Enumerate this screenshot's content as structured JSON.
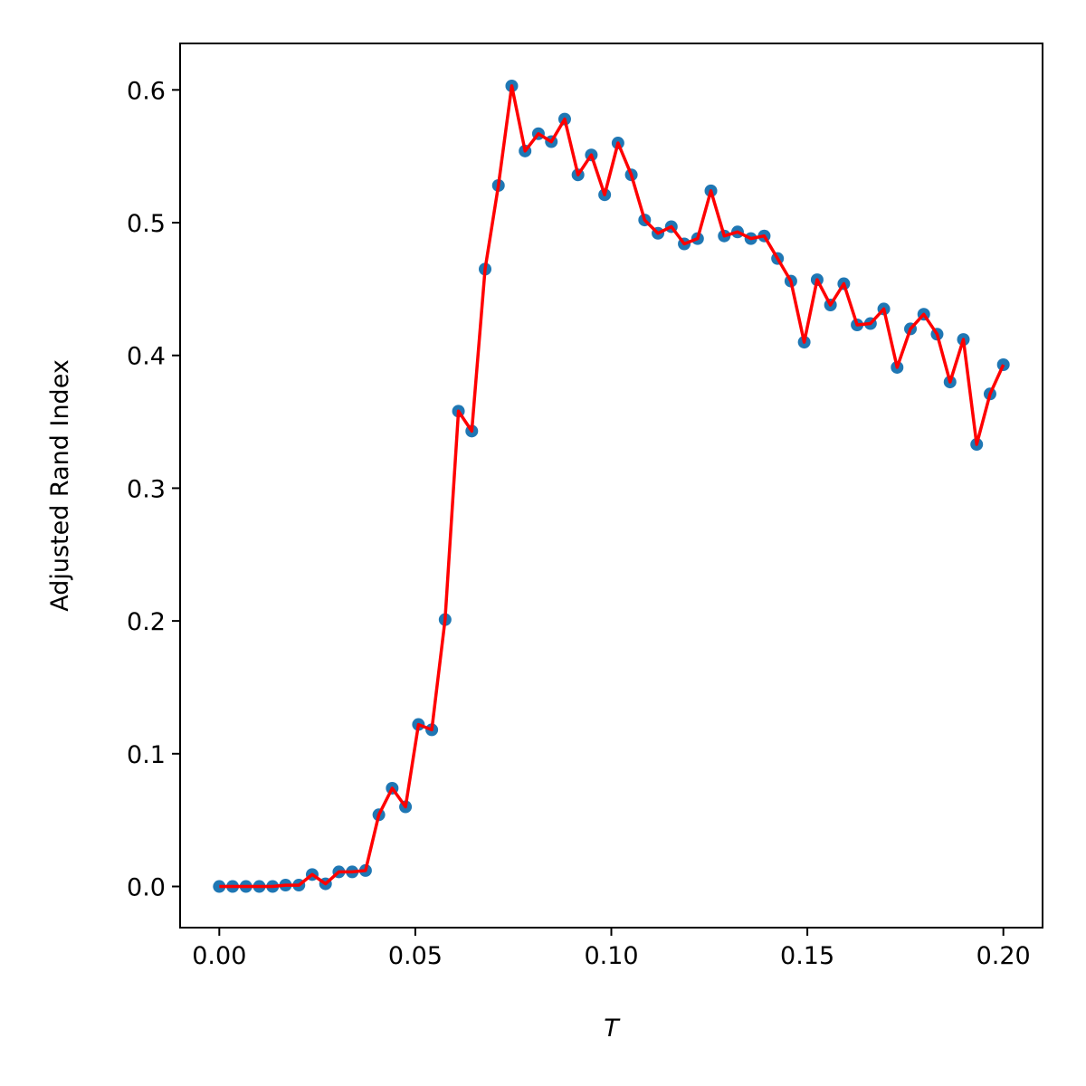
{
  "chart_data": {
    "type": "line",
    "title": "",
    "xlabel": "T",
    "ylabel": "Adjusted Rand Index",
    "xlim": [
      -0.01,
      0.21
    ],
    "ylim": [
      -0.031,
      0.635
    ],
    "xticks": [
      0.0,
      0.05,
      0.1,
      0.15,
      0.2
    ],
    "xtick_labels": [
      "0.00",
      "0.05",
      "0.10",
      "0.15",
      "0.20"
    ],
    "yticks": [
      0.0,
      0.1,
      0.2,
      0.3,
      0.4,
      0.5,
      0.6
    ],
    "ytick_labels": [
      "0.0",
      "0.1",
      "0.2",
      "0.3",
      "0.4",
      "0.5",
      "0.6"
    ],
    "grid": false,
    "legend": "none",
    "series": [
      {
        "style": "scatter",
        "color": "#1f77b4",
        "x": [
          0.0,
          0.0034,
          0.0068,
          0.0102,
          0.0136,
          0.0169,
          0.0203,
          0.0237,
          0.0271,
          0.0305,
          0.0339,
          0.0373,
          0.0407,
          0.0441,
          0.0475,
          0.0508,
          0.0542,
          0.0576,
          0.061,
          0.0644,
          0.0678,
          0.0712,
          0.0746,
          0.078,
          0.0814,
          0.0847,
          0.0881,
          0.0915,
          0.0949,
          0.0983,
          0.1017,
          0.1051,
          0.1085,
          0.1119,
          0.1153,
          0.1186,
          0.122,
          0.1254,
          0.1288,
          0.1322,
          0.1356,
          0.139,
          0.1424,
          0.1458,
          0.1492,
          0.1525,
          0.1559,
          0.1593,
          0.1627,
          0.1661,
          0.1695,
          0.1729,
          0.1763,
          0.1797,
          0.1831,
          0.1864,
          0.1898,
          0.1932,
          0.1966,
          0.2
        ],
        "y": [
          0.0,
          0.0,
          0.0,
          0.0,
          0.0,
          0.001,
          0.001,
          0.009,
          0.002,
          0.011,
          0.011,
          0.012,
          0.054,
          0.074,
          0.06,
          0.122,
          0.118,
          0.201,
          0.358,
          0.343,
          0.465,
          0.528,
          0.603,
          0.554,
          0.567,
          0.561,
          0.578,
          0.536,
          0.551,
          0.521,
          0.56,
          0.536,
          0.502,
          0.492,
          0.497,
          0.484,
          0.488,
          0.524,
          0.49,
          0.493,
          0.488,
          0.49,
          0.473,
          0.456,
          0.41,
          0.457,
          0.438,
          0.454,
          0.423,
          0.424,
          0.435,
          0.391,
          0.42,
          0.431,
          0.416,
          0.38,
          0.412,
          0.333,
          0.371,
          0.393
        ]
      },
      {
        "style": "line",
        "color": "#ff0000",
        "x": [
          0.0,
          0.0034,
          0.0068,
          0.0102,
          0.0136,
          0.0169,
          0.0203,
          0.0237,
          0.0271,
          0.0305,
          0.0339,
          0.0373,
          0.0407,
          0.0441,
          0.0475,
          0.0508,
          0.0542,
          0.0576,
          0.061,
          0.0644,
          0.0678,
          0.0712,
          0.0746,
          0.078,
          0.0814,
          0.0847,
          0.0881,
          0.0915,
          0.0949,
          0.0983,
          0.1017,
          0.1051,
          0.1085,
          0.1119,
          0.1153,
          0.1186,
          0.122,
          0.1254,
          0.1288,
          0.1322,
          0.1356,
          0.139,
          0.1424,
          0.1458,
          0.1492,
          0.1525,
          0.1559,
          0.1593,
          0.1627,
          0.1661,
          0.1695,
          0.1729,
          0.1763,
          0.1797,
          0.1831,
          0.1864,
          0.1898,
          0.1932,
          0.1966,
          0.2
        ],
        "y": [
          0.0,
          0.0,
          0.0,
          0.0,
          0.0,
          0.001,
          0.001,
          0.009,
          0.002,
          0.011,
          0.011,
          0.012,
          0.054,
          0.074,
          0.06,
          0.122,
          0.118,
          0.201,
          0.358,
          0.343,
          0.465,
          0.528,
          0.603,
          0.554,
          0.567,
          0.561,
          0.578,
          0.536,
          0.551,
          0.521,
          0.56,
          0.536,
          0.502,
          0.492,
          0.497,
          0.484,
          0.488,
          0.524,
          0.49,
          0.493,
          0.488,
          0.49,
          0.473,
          0.456,
          0.41,
          0.457,
          0.438,
          0.454,
          0.423,
          0.424,
          0.435,
          0.391,
          0.42,
          0.431,
          0.416,
          0.38,
          0.412,
          0.333,
          0.371,
          0.393
        ]
      }
    ]
  }
}
